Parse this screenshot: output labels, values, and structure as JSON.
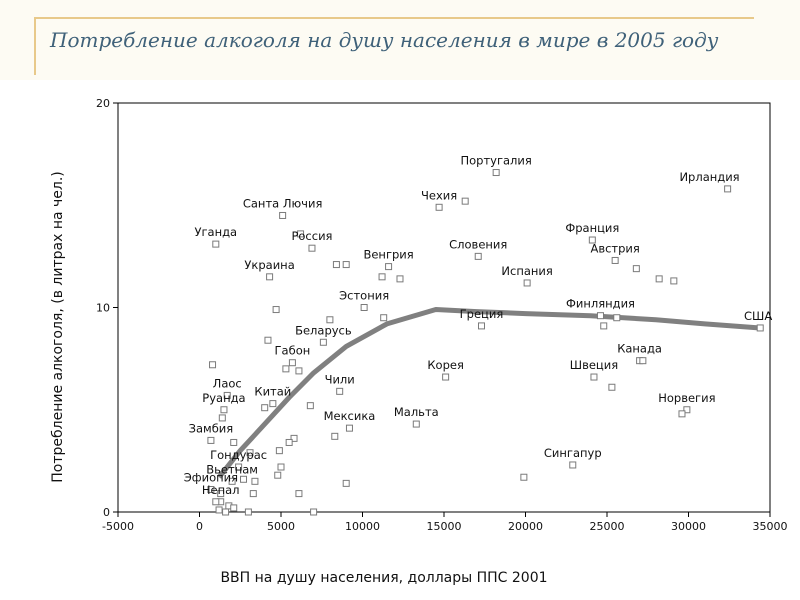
{
  "slide": {
    "title": "Потребление алкоголя на душу населения в мире в 2005 году",
    "accent_color": "#e8c98a",
    "title_color": "#3f6179"
  },
  "chart_data": {
    "type": "scatter",
    "xlabel": "ВВП на душу населения, доллары ППС 2001",
    "ylabel": "Потребление алкоголя, (в литрах на чел.)",
    "xlim": [
      -5000,
      35000
    ],
    "ylim": [
      0,
      20
    ],
    "x_ticks": [
      "-5000",
      "0",
      "5000",
      "10000",
      "15000",
      "20000",
      "25000",
      "30000",
      "35000"
    ],
    "y_ticks": [
      "0",
      "10",
      "20"
    ],
    "grid": false,
    "marker": "open-square",
    "points": [
      {
        "label": "Португалия",
        "x": 18200,
        "y": 16.6
      },
      {
        "label": "Ирландия",
        "x": 32400,
        "y": 15.8
      },
      {
        "label": "Чехия",
        "x": 14700,
        "y": 14.9
      },
      {
        "label": "",
        "x": 16300,
        "y": 15.2
      },
      {
        "label": "Санта Лючия",
        "x": 5100,
        "y": 14.5
      },
      {
        "label": "",
        "x": 6200,
        "y": 13.6
      },
      {
        "label": "Уганда",
        "x": 1000,
        "y": 13.1
      },
      {
        "label": "Россия",
        "x": 6900,
        "y": 12.9
      },
      {
        "label": "Словения",
        "x": 17100,
        "y": 12.5
      },
      {
        "label": "Франция",
        "x": 24100,
        "y": 13.3
      },
      {
        "label": "Австрия",
        "x": 25500,
        "y": 12.3
      },
      {
        "label": "",
        "x": 26800,
        "y": 11.9
      },
      {
        "label": "",
        "x": 28200,
        "y": 11.4
      },
      {
        "label": "",
        "x": 29100,
        "y": 11.3
      },
      {
        "label": "Украина",
        "x": 4300,
        "y": 11.5
      },
      {
        "label": "",
        "x": 8400,
        "y": 12.1
      },
      {
        "label": "",
        "x": 9000,
        "y": 12.1
      },
      {
        "label": "Венгрия",
        "x": 11600,
        "y": 12.0
      },
      {
        "label": "",
        "x": 11200,
        "y": 11.5
      },
      {
        "label": "",
        "x": 12300,
        "y": 11.4
      },
      {
        "label": "Испания",
        "x": 20100,
        "y": 11.2
      },
      {
        "label": "Эстония",
        "x": 10100,
        "y": 10.0
      },
      {
        "label": "",
        "x": 11300,
        "y": 9.5
      },
      {
        "label": "",
        "x": 4700,
        "y": 9.9
      },
      {
        "label": "",
        "x": 8000,
        "y": 9.4
      },
      {
        "label": "Финляндия",
        "x": 24600,
        "y": 9.6
      },
      {
        "label": "",
        "x": 25600,
        "y": 9.5
      },
      {
        "label": "",
        "x": 24800,
        "y": 9.1
      },
      {
        "label": "США",
        "x": 34400,
        "y": 9.0
      },
      {
        "label": "Греция",
        "x": 17300,
        "y": 9.1
      },
      {
        "label": "Беларусь",
        "x": 7600,
        "y": 8.3
      },
      {
        "label": "",
        "x": 4200,
        "y": 8.4
      },
      {
        "label": "Канада",
        "x": 27000,
        "y": 7.4
      },
      {
        "label": "",
        "x": 27200,
        "y": 7.4
      },
      {
        "label": "Габон",
        "x": 5700,
        "y": 7.3
      },
      {
        "label": "",
        "x": 5300,
        "y": 7.0
      },
      {
        "label": "",
        "x": 6100,
        "y": 6.9
      },
      {
        "label": "",
        "x": 800,
        "y": 7.2
      },
      {
        "label": "Корея",
        "x": 15100,
        "y": 6.6
      },
      {
        "label": "Швеция",
        "x": 24200,
        "y": 6.6
      },
      {
        "label": "",
        "x": 25300,
        "y": 6.1
      },
      {
        "label": "Чили",
        "x": 8600,
        "y": 5.9
      },
      {
        "label": "Лаос",
        "x": 1700,
        "y": 5.7
      },
      {
        "label": "Китай",
        "x": 4500,
        "y": 5.3
      },
      {
        "label": "",
        "x": 4000,
        "y": 5.1
      },
      {
        "label": "",
        "x": 6800,
        "y": 5.2
      },
      {
        "label": "Руанда",
        "x": 1500,
        "y": 5.0
      },
      {
        "label": "",
        "x": 1400,
        "y": 4.6
      },
      {
        "label": "Мальта",
        "x": 13300,
        "y": 4.3
      },
      {
        "label": "Норвегия",
        "x": 29900,
        "y": 5.0
      },
      {
        "label": "",
        "x": 29600,
        "y": 4.8
      },
      {
        "label": "Мексика",
        "x": 9200,
        "y": 4.1
      },
      {
        "label": "",
        "x": 8300,
        "y": 3.7
      },
      {
        "label": "",
        "x": 5800,
        "y": 3.6
      },
      {
        "label": "",
        "x": 5500,
        "y": 3.4
      },
      {
        "label": "Замбия",
        "x": 700,
        "y": 3.5
      },
      {
        "label": "",
        "x": 2100,
        "y": 3.4
      },
      {
        "label": "",
        "x": 4900,
        "y": 3.0
      },
      {
        "label": "",
        "x": 3100,
        "y": 2.9
      },
      {
        "label": "Сингапур",
        "x": 22900,
        "y": 2.3
      },
      {
        "label": "",
        "x": 19900,
        "y": 1.7
      },
      {
        "label": "Гондурас",
        "x": 2400,
        "y": 2.2
      },
      {
        "label": "",
        "x": 5000,
        "y": 2.2
      },
      {
        "label": "",
        "x": 2700,
        "y": 1.6
      },
      {
        "label": "Вьетнам",
        "x": 2000,
        "y": 1.5
      },
      {
        "label": "",
        "x": 4800,
        "y": 1.8
      },
      {
        "label": "",
        "x": 3400,
        "y": 1.5
      },
      {
        "label": "",
        "x": 9000,
        "y": 1.4
      },
      {
        "label": "Эфиопия",
        "x": 700,
        "y": 1.1
      },
      {
        "label": "",
        "x": 1300,
        "y": 0.9
      },
      {
        "label": "",
        "x": 3300,
        "y": 0.9
      },
      {
        "label": "",
        "x": 6100,
        "y": 0.9
      },
      {
        "label": "Непал",
        "x": 1300,
        "y": 0.5
      },
      {
        "label": "",
        "x": 1800,
        "y": 0.3
      },
      {
        "label": "",
        "x": 2100,
        "y": 0.2
      },
      {
        "label": "",
        "x": 1200,
        "y": 0.1
      },
      {
        "label": "",
        "x": 1600,
        "y": 0.0
      },
      {
        "label": "",
        "x": 3000,
        "y": 0.0
      },
      {
        "label": "",
        "x": 7000,
        "y": 0.0
      },
      {
        "label": "",
        "x": 1000,
        "y": 0.5
      }
    ],
    "trend_line": {
      "x": [
        1200,
        2500,
        4000,
        5500,
        7000,
        9000,
        11500,
        14500,
        17000,
        20000,
        24000,
        28000,
        31000,
        34300
      ],
      "y": [
        1.7,
        3.0,
        4.3,
        5.6,
        6.8,
        8.1,
        9.2,
        9.9,
        9.8,
        9.7,
        9.6,
        9.4,
        9.2,
        9.0
      ],
      "color": "#808080"
    }
  }
}
